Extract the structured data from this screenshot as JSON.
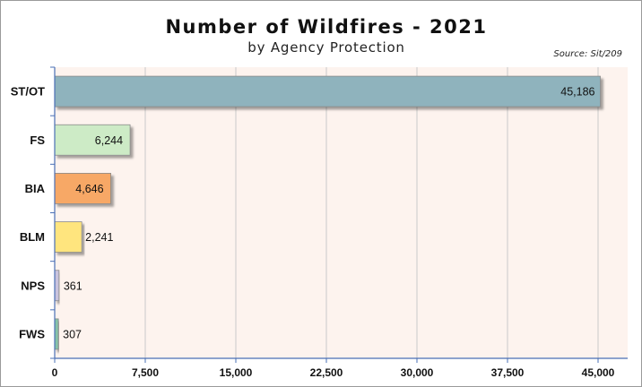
{
  "chart_data": {
    "type": "bar",
    "orientation": "horizontal",
    "title": "Number of Wildfires - 2021",
    "subtitle": "by Agency Protection",
    "source": "Source: Sit/209",
    "categories": [
      "ST/OT",
      "FS",
      "BIA",
      "BLM",
      "NPS",
      "FWS"
    ],
    "values": [
      45186,
      6244,
      4646,
      2241,
      361,
      307
    ],
    "data_labels": [
      "45,186",
      "6,244",
      "4,646",
      "2,241",
      "361",
      "307"
    ],
    "bar_colors": [
      "#8fb3bd",
      "#cdebc6",
      "#f7a866",
      "#ffe57e",
      "#c9c3dd",
      "#87c2a8"
    ],
    "xlim": [
      0,
      45000
    ],
    "x_ticks": [
      0,
      7500,
      15000,
      22500,
      30000,
      37500,
      45000
    ],
    "x_tick_labels": [
      "0",
      "7,500",
      "15,000",
      "22,500",
      "30,000",
      "37,500",
      "45,000"
    ],
    "grid": true,
    "plot_background": "#fdf3ee",
    "gridline_color": "#c9c9c9",
    "axis_color": "#4a6fb5"
  }
}
